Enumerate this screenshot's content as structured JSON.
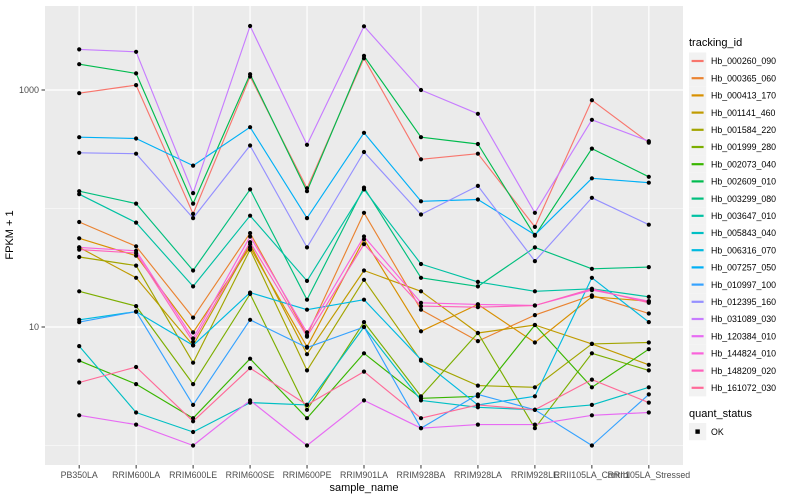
{
  "figure": {
    "background": "#FFFFFF",
    "panel_background": "#EBEBEB",
    "grid_color": "#FFFFFF",
    "tick_mark_color": "#333333",
    "tick_label_color": "#4D4D4D",
    "title_color": "#000000",
    "point_color": "#000000",
    "legend_key_background": "#F2F2F2"
  },
  "chart_data": {
    "type": "line",
    "x_label": "sample_name",
    "y_label": "FPKM + 1",
    "y_scale": "log10",
    "y_major_ticks": [
      1000,
      10
    ],
    "y_major_tick_labels": [
      "1000",
      "10"
    ],
    "y_minor_gridlines": [
      100,
      1
    ],
    "ylim_approx": [
      0.9,
      5000
    ],
    "grid": "on",
    "legend_position": "right",
    "legend_title": "tracking_id",
    "secondary_legend": {
      "title": "quant_status",
      "items": [
        "OK"
      ]
    },
    "categories": [
      "PB350LA",
      "RRIM600LA",
      "RRIM600LE",
      "RRIM600SE",
      "RRIM600PE",
      "RRIM901LA",
      "RRIM928BA",
      "RRIM928LA",
      "RRIM928LE",
      "RRII105LA_Control",
      "RRII105LA_Stressed"
    ],
    "series": [
      {
        "name": "Hb_000260_090",
        "color": "#F8766D",
        "values": [
          940,
          1100,
          90,
          1300,
          148,
          1850,
          260,
          290,
          70,
          820,
          360
        ]
      },
      {
        "name": "Hb_000365_060",
        "color": "#EA8331",
        "values": [
          77,
          48,
          12,
          62,
          8.5,
          92,
          14,
          7.6,
          12.6,
          18.5,
          13
        ]
      },
      {
        "name": "Hb_000413_170",
        "color": "#D89000",
        "values": [
          56,
          40,
          9,
          47,
          6.8,
          55,
          9.2,
          15.5,
          7.4,
          18,
          16.5
        ]
      },
      {
        "name": "Hb_001141_460",
        "color": "#C09B00",
        "values": [
          47,
          26,
          7,
          50,
          5.9,
          30,
          20,
          8.9,
          10.4,
          7.2,
          4.8
        ]
      },
      {
        "name": "Hb_001584_220",
        "color": "#A3A500",
        "values": [
          39,
          33,
          5,
          45,
          4.3,
          25,
          5.2,
          3.2,
          3.1,
          7.2,
          7.4
        ]
      },
      {
        "name": "Hb_001999_280",
        "color": "#7CAE00",
        "values": [
          20,
          15,
          3.3,
          19,
          2.0,
          11,
          2.6,
          8.9,
          1.4,
          6.0,
          4.3
        ]
      },
      {
        "name": "Hb_002073_040",
        "color": "#39B600",
        "values": [
          5.2,
          3.3,
          1.7,
          5.4,
          1.7,
          6.0,
          2.5,
          2.6,
          10.4,
          3.1,
          6.5
        ]
      },
      {
        "name": "Hb_002609_010",
        "color": "#00BB4E",
        "values": [
          1650,
          1380,
          110,
          1360,
          140,
          1940,
          400,
          350,
          59,
          320,
          185
        ]
      },
      {
        "name": "Hb_003299_080",
        "color": "#00BF7D",
        "values": [
          140,
          110,
          30,
          145,
          17,
          150,
          26,
          22,
          47,
          31,
          32
        ]
      },
      {
        "name": "Hb_003647_010",
        "color": "#00C1A3",
        "values": [
          132,
          76,
          22,
          87,
          24.5,
          145,
          34,
          24,
          20,
          21,
          18
        ]
      },
      {
        "name": "Hb_005843_040",
        "color": "#00BFC4",
        "values": [
          6.9,
          1.9,
          1.3,
          2.3,
          2.2,
          10,
          2.4,
          2.1,
          2.0,
          2.2,
          3.1
        ]
      },
      {
        "name": "Hb_006316_070",
        "color": "#00BAE0",
        "values": [
          11.5,
          13.5,
          7,
          19.5,
          14,
          17,
          5.3,
          2.2,
          2.6,
          26,
          11
        ]
      },
      {
        "name": "Hb_007257_050",
        "color": "#00B0F6",
        "values": [
          400,
          390,
          230,
          485,
          83,
          435,
          115,
          119,
          60,
          180,
          165
        ]
      },
      {
        "name": "Hb_010997_100",
        "color": "#35A2FF",
        "values": [
          11,
          13.5,
          2.2,
          11.5,
          6.7,
          10,
          1.4,
          2.7,
          2.0,
          1.0,
          2.7
        ]
      },
      {
        "name": "Hb_012395_160",
        "color": "#9590FF",
        "values": [
          295,
          290,
          83,
          340,
          47,
          300,
          89,
          155,
          36,
          123,
          73
        ]
      },
      {
        "name": "Hb_031089_030",
        "color": "#C77CFF",
        "values": [
          2200,
          2100,
          135,
          3470,
          345,
          3450,
          1000,
          630,
          92,
          560,
          370
        ]
      },
      {
        "name": "Hb_120384_010",
        "color": "#E76BF3",
        "values": [
          1.8,
          1.5,
          1.0,
          2.4,
          1.0,
          2.4,
          1.4,
          1.5,
          1.5,
          1.8,
          1.9
        ]
      },
      {
        "name": "Hb_144824_010",
        "color": "#FA62DB",
        "values": [
          47,
          44,
          8,
          58,
          9,
          58,
          16,
          15.5,
          15.2,
          20.5,
          16.5
        ]
      },
      {
        "name": "Hb_148209_020",
        "color": "#FF62BC",
        "values": [
          45,
          42,
          7.5,
          52,
          8.3,
          50,
          15,
          14.7,
          15.2,
          21,
          16
        ]
      },
      {
        "name": "Hb_161072_030",
        "color": "#FF6A98",
        "values": [
          3.4,
          4.6,
          1.6,
          4.5,
          2.2,
          4.2,
          1.7,
          2.2,
          2.0,
          3.6,
          2.3
        ]
      }
    ]
  }
}
